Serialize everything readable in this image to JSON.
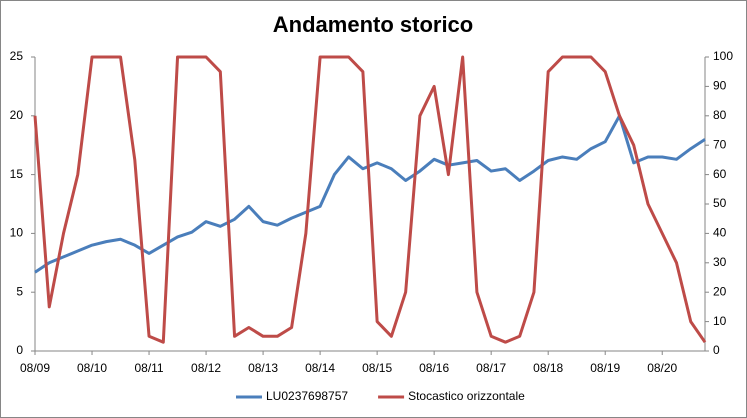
{
  "chart_data": {
    "type": "line",
    "title": "Andamento storico",
    "categories": [
      "08/09",
      null,
      null,
      null,
      "08/10",
      null,
      null,
      null,
      "08/11",
      null,
      null,
      null,
      "08/12",
      null,
      null,
      null,
      "08/13",
      null,
      null,
      null,
      "08/14",
      null,
      null,
      null,
      "08/15",
      null,
      null,
      null,
      "08/16",
      null,
      null,
      null,
      "08/17",
      null,
      null,
      null,
      "08/18",
      null,
      null,
      null,
      "08/19",
      null,
      null,
      null,
      "08/20",
      null,
      null,
      null
    ],
    "series": [
      {
        "name": "LU0237698757",
        "color": "#4a7ebb",
        "values": [
          6.7,
          7.5,
          8,
          8.5,
          9,
          9.3,
          9.5,
          9,
          8.3,
          9,
          9.7,
          10.1,
          11,
          10.6,
          11.2,
          12.3,
          11,
          10.7,
          11.3,
          11.8,
          12.3,
          15,
          16.5,
          15.5,
          16,
          15.5,
          14.5,
          15.3,
          16.3,
          15.8,
          16,
          16.2,
          15.3,
          15.5,
          14.5,
          15.3,
          16.2,
          16.5,
          16.3,
          17.2,
          17.8,
          20,
          16,
          16.5,
          16.5,
          16.3,
          17.2,
          18
        ]
      },
      {
        "name": "Stocastico orizzontale",
        "color": "#be4b48",
        "axis": "y2",
        "values": [
          80,
          15,
          40,
          60,
          100,
          100,
          100,
          65,
          5,
          3,
          100,
          100,
          100,
          95,
          5,
          8,
          5,
          5,
          8,
          40,
          100,
          100,
          100,
          95,
          10,
          5,
          20,
          80,
          90,
          60,
          100,
          20,
          5,
          3,
          5,
          20,
          95,
          100,
          100,
          100,
          95,
          80,
          70,
          50,
          40,
          30,
          10,
          3
        ]
      }
    ],
    "ylim": [
      0,
      25
    ],
    "yticks": [
      0,
      5,
      10,
      15,
      20,
      25
    ],
    "y2lim": [
      0,
      100
    ],
    "y2ticks": [
      0,
      10,
      20,
      30,
      40,
      50,
      60,
      70,
      80,
      90,
      100
    ],
    "legend": "bottom"
  }
}
